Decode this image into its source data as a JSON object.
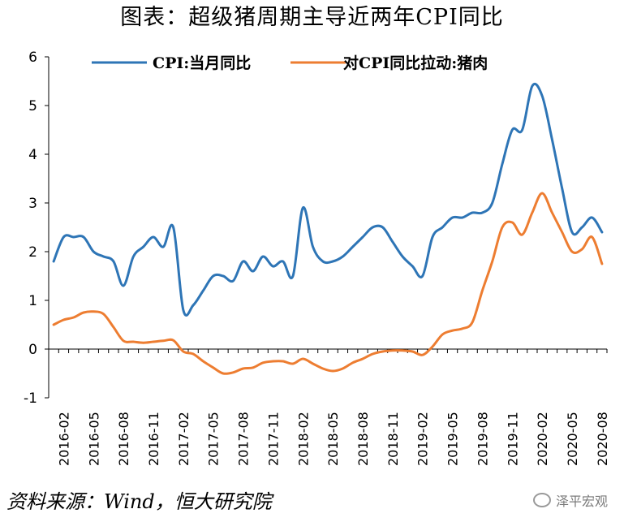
{
  "title": "图表：超级猪周期主导近两年CPI同比",
  "source": "资料来源：Wind，恒大研究院",
  "watermark": "泽平宏观",
  "colors": {
    "cpi": "#2E75B6",
    "pork": "#ED7D31",
    "axis": "#000000"
  },
  "chart_data": {
    "type": "line",
    "ylim": [
      -1,
      6
    ],
    "yticks": [
      -1,
      0,
      1,
      2,
      3,
      4,
      5,
      6
    ],
    "grid": false,
    "legend_position": "top",
    "x": [
      "2016-01",
      "2016-02",
      "2016-03",
      "2016-04",
      "2016-05",
      "2016-06",
      "2016-07",
      "2016-08",
      "2016-09",
      "2016-10",
      "2016-11",
      "2016-12",
      "2017-01",
      "2017-02",
      "2017-03",
      "2017-04",
      "2017-05",
      "2017-06",
      "2017-07",
      "2017-08",
      "2017-09",
      "2017-10",
      "2017-11",
      "2017-12",
      "2018-01",
      "2018-02",
      "2018-03",
      "2018-04",
      "2018-05",
      "2018-06",
      "2018-07",
      "2018-08",
      "2018-09",
      "2018-10",
      "2018-11",
      "2018-12",
      "2019-01",
      "2019-02",
      "2019-03",
      "2019-04",
      "2019-05",
      "2019-06",
      "2019-07",
      "2019-08",
      "2019-09",
      "2019-10",
      "2019-11",
      "2019-12",
      "2020-01",
      "2020-02",
      "2020-03",
      "2020-04",
      "2020-05",
      "2020-06",
      "2020-07",
      "2020-08"
    ],
    "tick_labels": [
      "2016-02",
      "2016-05",
      "2016-08",
      "2016-11",
      "2017-02",
      "2017-05",
      "2017-08",
      "2017-11",
      "2018-02",
      "2018-05",
      "2018-08",
      "2018-11",
      "2019-02",
      "2019-05",
      "2019-08",
      "2019-11",
      "2020-02",
      "2020-05",
      "2020-08"
    ],
    "series": [
      {
        "name": "CPI:当月同比",
        "color": "#2E75B6",
        "values": [
          1.8,
          2.3,
          2.3,
          2.3,
          2.0,
          1.9,
          1.8,
          1.3,
          1.9,
          2.1,
          2.3,
          2.1,
          2.5,
          0.8,
          0.9,
          1.2,
          1.5,
          1.5,
          1.4,
          1.8,
          1.6,
          1.9,
          1.7,
          1.8,
          1.5,
          2.9,
          2.1,
          1.8,
          1.8,
          1.9,
          2.1,
          2.3,
          2.5,
          2.5,
          2.2,
          1.9,
          1.7,
          1.5,
          2.3,
          2.5,
          2.7,
          2.7,
          2.8,
          2.8,
          3.0,
          3.8,
          4.5,
          4.5,
          5.4,
          5.2,
          4.3,
          3.3,
          2.4,
          2.5,
          2.7,
          2.4
        ]
      },
      {
        "name": "对CPI同比拉动:猪肉",
        "color": "#ED7D31",
        "values": [
          0.5,
          0.6,
          0.65,
          0.75,
          0.77,
          0.72,
          0.45,
          0.17,
          0.15,
          0.13,
          0.15,
          0.17,
          0.18,
          -0.05,
          -0.1,
          -0.25,
          -0.38,
          -0.5,
          -0.48,
          -0.4,
          -0.38,
          -0.28,
          -0.25,
          -0.25,
          -0.3,
          -0.2,
          -0.3,
          -0.4,
          -0.45,
          -0.4,
          -0.28,
          -0.2,
          -0.1,
          -0.05,
          -0.03,
          -0.03,
          -0.05,
          -0.12,
          0.05,
          0.3,
          0.38,
          0.42,
          0.55,
          1.2,
          1.8,
          2.5,
          2.6,
          2.35,
          2.8,
          3.2,
          2.8,
          2.4,
          2.0,
          2.05,
          2.3,
          1.75
        ]
      }
    ]
  }
}
